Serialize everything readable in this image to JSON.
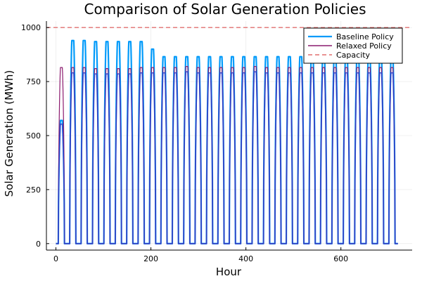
{
  "chart_data": {
    "type": "line",
    "title": "Comparison of Solar Generation Policies",
    "xlabel": "Hour",
    "ylabel": "Solar Generation (MWh)",
    "xlim": [
      -20,
      750
    ],
    "ylim": [
      -30,
      1030
    ],
    "xticks": [
      0,
      200,
      400,
      600
    ],
    "yticks": [
      0,
      250,
      500,
      750,
      1000
    ],
    "grid": true,
    "legend_position": "top-right",
    "day_hours": 24,
    "sun_start_hour": 5,
    "sun_end_hour": 18,
    "series": [
      {
        "name": "Baseline Policy",
        "color": "#009AFA",
        "style": "solid",
        "daily_peaks": [
          570,
          940,
          940,
          935,
          935,
          935,
          935,
          935,
          900,
          865,
          865,
          865,
          865,
          865,
          865,
          865,
          865,
          865,
          865,
          865,
          865,
          865,
          865,
          865,
          865,
          865,
          865,
          865,
          865,
          865
        ]
      },
      {
        "name": "Relaxed Policy",
        "color": "#8B1A6E",
        "style": "solid",
        "daily_peaks": [
          815,
          815,
          815,
          810,
          810,
          810,
          810,
          815,
          815,
          815,
          815,
          820,
          815,
          815,
          815,
          815,
          815,
          820,
          815,
          815,
          815,
          815,
          815,
          815,
          815,
          815,
          815,
          815,
          815,
          815
        ]
      },
      {
        "name": "Capacity",
        "color": "#E26F6F",
        "style": "dashed",
        "value": 1000
      }
    ],
    "overlap_color": "#2F3FC8"
  }
}
